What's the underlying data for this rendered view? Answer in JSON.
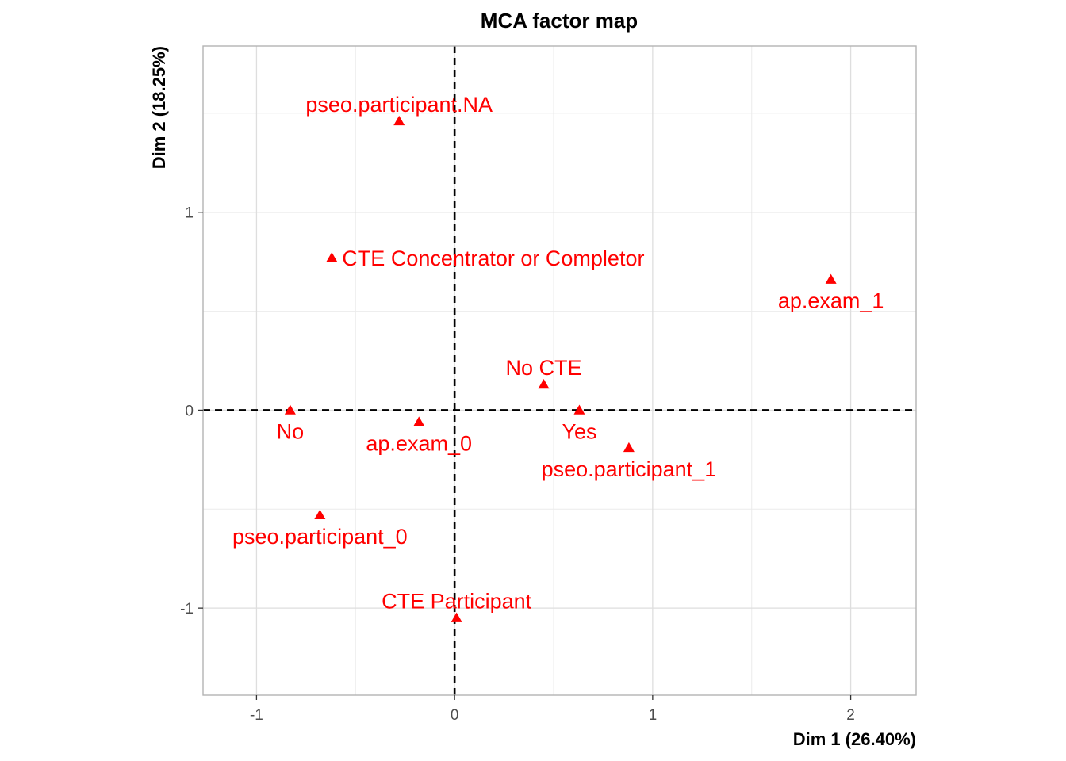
{
  "chart_data": {
    "type": "scatter",
    "title": "MCA factor map",
    "xlabel": "Dim 1 (26.40%)",
    "ylabel": "Dim 2 (18.25%)",
    "xlim": [
      -1.27,
      2.33
    ],
    "ylim": [
      -1.44,
      1.84
    ],
    "x_ticks": [
      -1,
      0,
      1,
      2
    ],
    "x_tick_labels": [
      "-1",
      "0",
      "1",
      "2"
    ],
    "y_ticks": [
      -1,
      0,
      1
    ],
    "y_tick_labels": [
      "-1",
      "0",
      "1"
    ],
    "x_minor_ticks": [
      -0.5,
      0.5,
      1.5
    ],
    "y_minor_ticks": [
      -0.5,
      0.5,
      1.5
    ],
    "grid": true,
    "reference_lines": {
      "x": 0,
      "y": 0,
      "style": "dashed"
    },
    "marker": "triangle",
    "point_color": "#ff0000",
    "points": [
      {
        "label": "pseo.participant.NA",
        "x": -0.28,
        "y": 1.46,
        "label_pos": "above"
      },
      {
        "label": "CTE Concentrator or Completor",
        "x": -0.62,
        "y": 0.77,
        "label_pos": "right"
      },
      {
        "label": "ap.exam_1",
        "x": 1.9,
        "y": 0.66,
        "label_pos": "below"
      },
      {
        "label": "No CTE",
        "x": 0.45,
        "y": 0.13,
        "label_pos": "above"
      },
      {
        "label": "Yes",
        "x": 0.63,
        "y": 0.0,
        "label_pos": "below"
      },
      {
        "label": "pseo.participant_1",
        "x": 0.88,
        "y": -0.19,
        "label_pos": "below"
      },
      {
        "label": "No",
        "x": -0.83,
        "y": 0.0,
        "label_pos": "below"
      },
      {
        "label": "ap.exam_0",
        "x": -0.18,
        "y": -0.06,
        "label_pos": "below"
      },
      {
        "label": "pseo.participant_0",
        "x": -0.68,
        "y": -0.53,
        "label_pos": "below"
      },
      {
        "label": "CTE Participant",
        "x": 0.01,
        "y": -1.05,
        "label_pos": "above"
      }
    ]
  }
}
